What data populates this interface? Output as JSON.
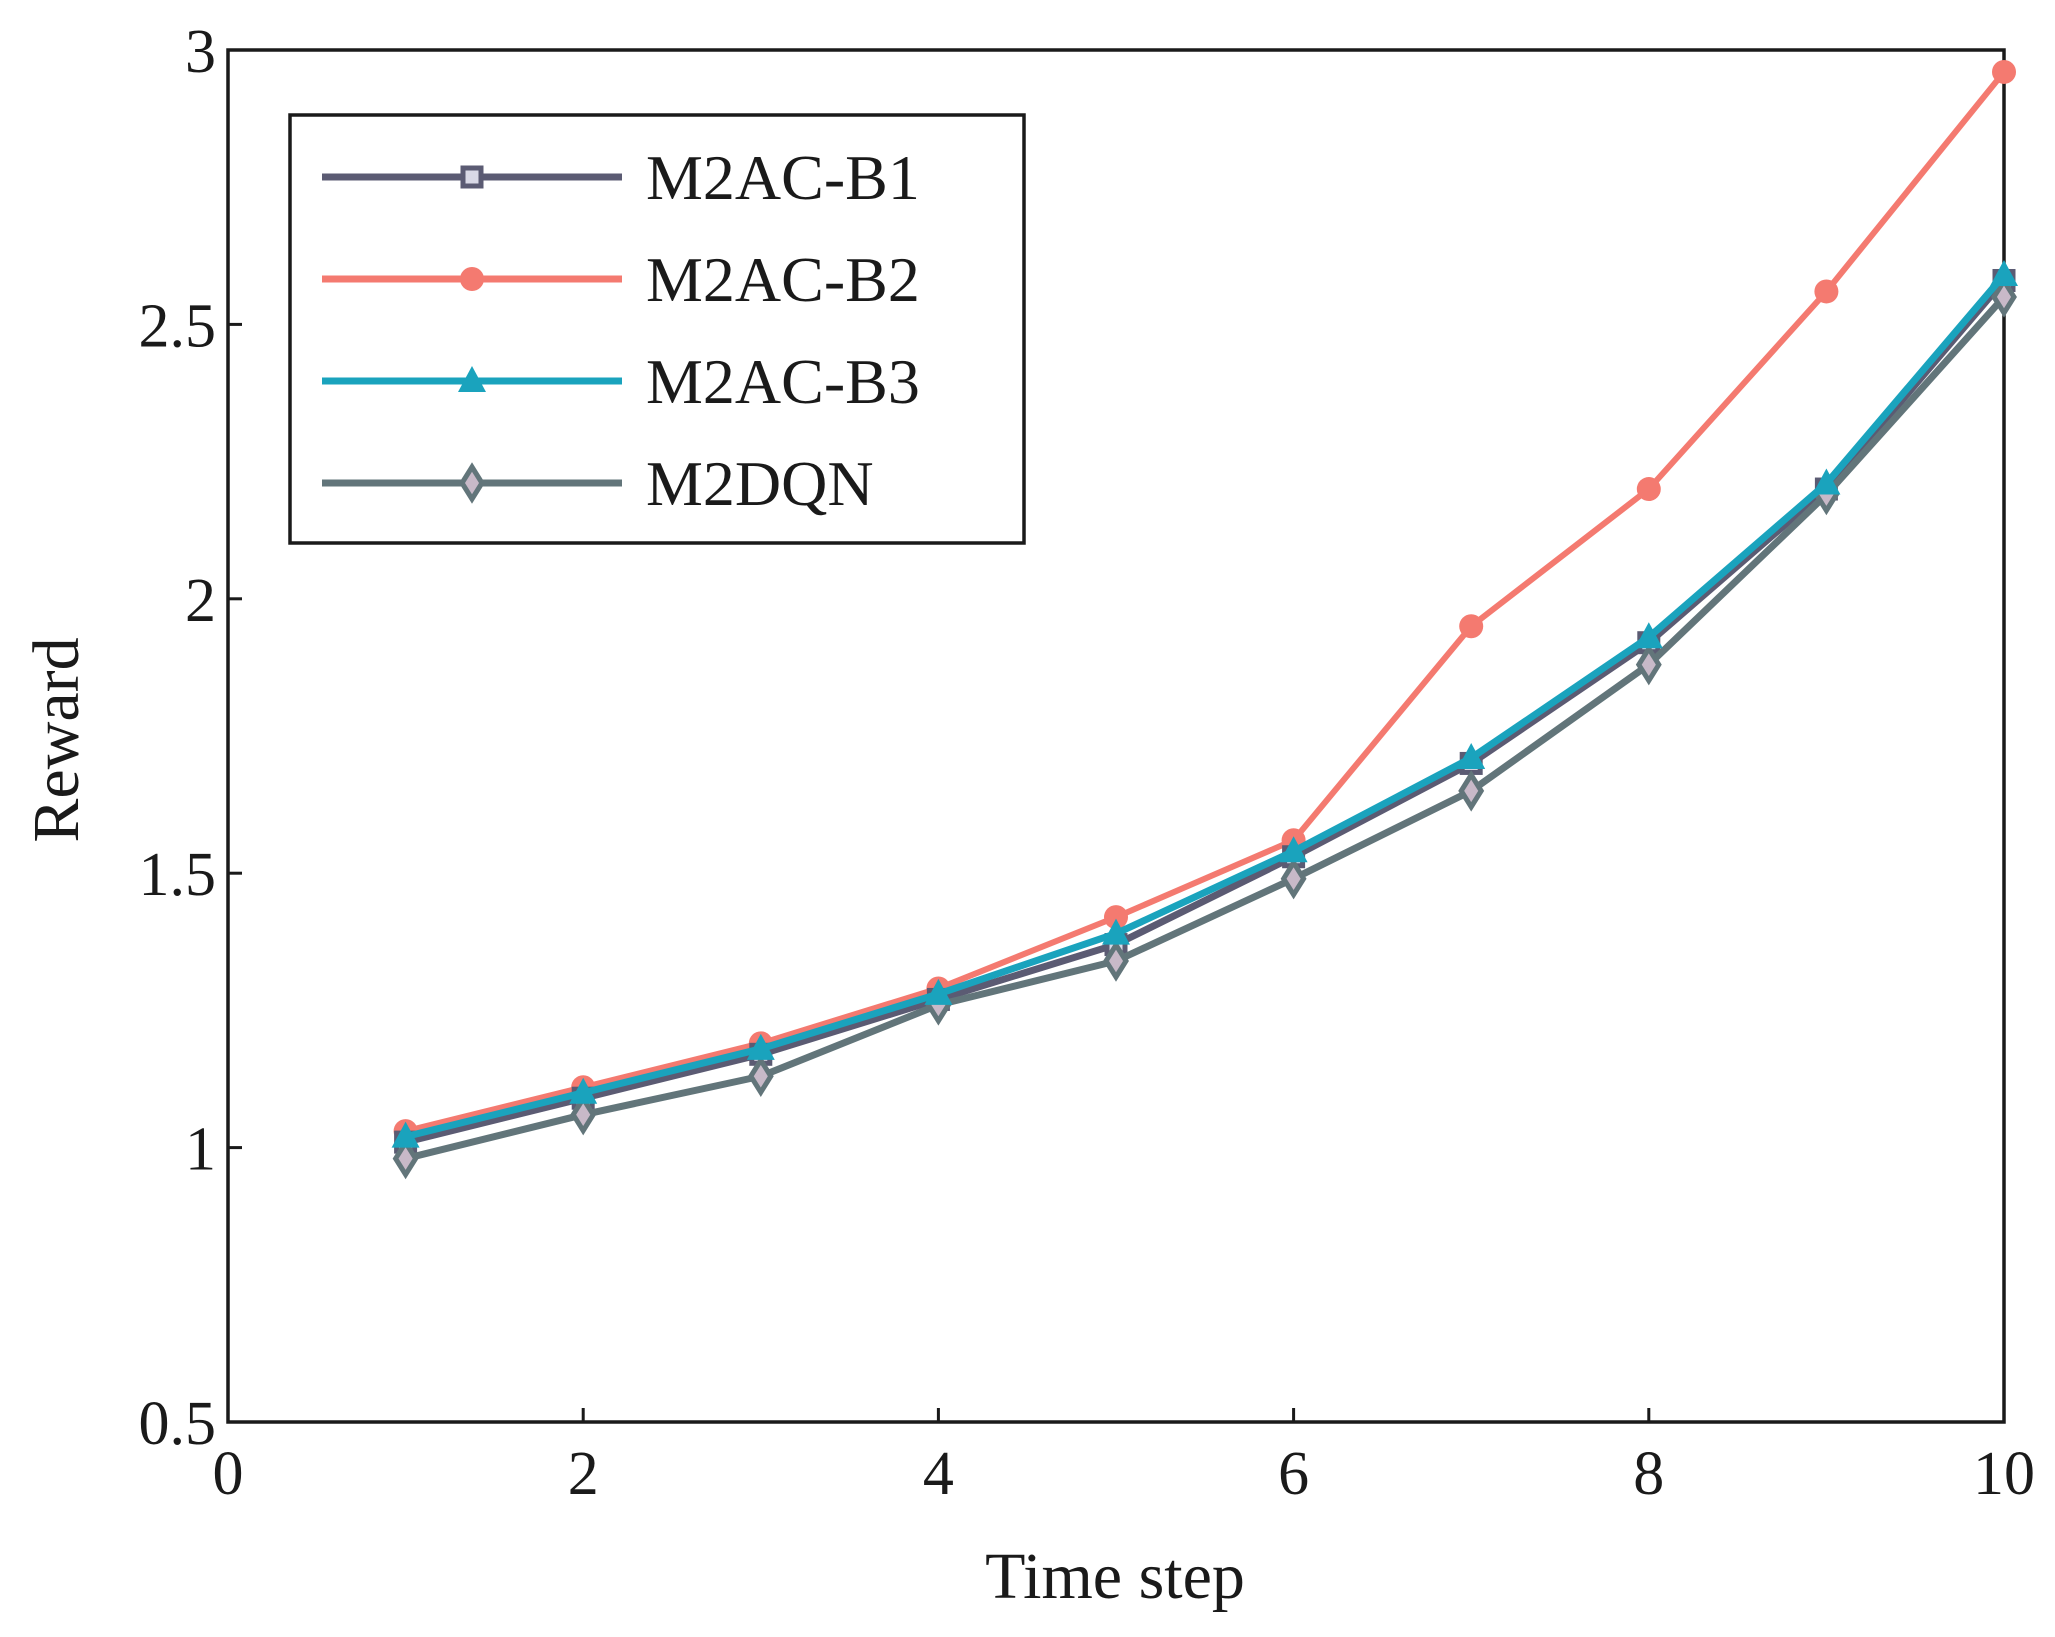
{
  "chart_data": {
    "type": "line",
    "title": "",
    "xlabel": "Time step",
    "ylabel": "Reward",
    "xlim": [
      0,
      10
    ],
    "ylim": [
      0.5,
      3
    ],
    "xticks": [
      0,
      2,
      4,
      6,
      8,
      10
    ],
    "xtick_labels": [
      "0",
      "2",
      "4",
      "6",
      "8",
      "10"
    ],
    "yticks": [
      0.5,
      1,
      1.5,
      2,
      2.5,
      3
    ],
    "ytick_labels": [
      "0.5",
      "1",
      "1.5",
      "2",
      "2.5",
      "3"
    ],
    "grid": false,
    "legend_position": "top-left",
    "x": [
      1,
      2,
      3,
      4,
      5,
      6,
      7,
      8,
      9,
      10
    ],
    "series": [
      {
        "name": "M2AC-B1",
        "color": "#5b5b73",
        "marker": "square",
        "values": [
          1.01,
          1.09,
          1.17,
          1.27,
          1.37,
          1.53,
          1.7,
          1.92,
          2.2,
          2.58
        ]
      },
      {
        "name": "M2AC-B2",
        "color": "#f47a70",
        "marker": "circle",
        "values": [
          1.03,
          1.11,
          1.19,
          1.29,
          1.42,
          1.56,
          1.95,
          2.2,
          2.56,
          2.96
        ]
      },
      {
        "name": "M2AC-B3",
        "color": "#1aa3bd",
        "marker": "triangle",
        "values": [
          1.02,
          1.1,
          1.18,
          1.28,
          1.39,
          1.54,
          1.71,
          1.93,
          2.21,
          2.59
        ]
      },
      {
        "name": "M2DQN",
        "color": "#62757a",
        "marker": "diamond",
        "values": [
          0.98,
          1.06,
          1.13,
          1.26,
          1.34,
          1.49,
          1.65,
          1.88,
          2.19,
          2.55
        ]
      }
    ]
  }
}
